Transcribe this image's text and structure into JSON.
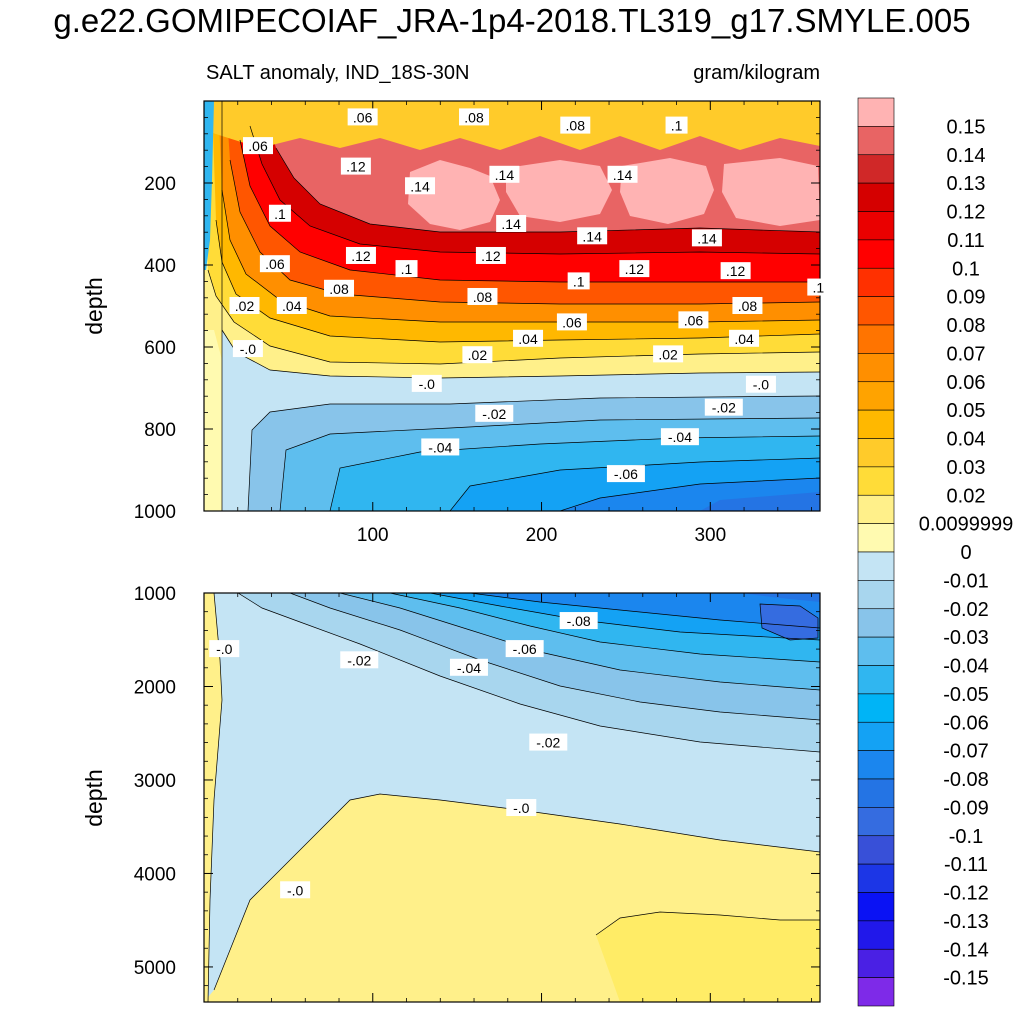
{
  "title": "g.e22.GOMIPECOIAF_JRA-1p4-2018.TL319_g17.SMYLE.005",
  "subtitle_left": "SALT anomaly, IND_18S-30N",
  "subtitle_right": "gram/kilogram",
  "chart_data": [
    {
      "type": "heatmap",
      "panel": "upper",
      "variable": "SALT anomaly",
      "region": "IND_18S-30N",
      "units": "gram/kilogram",
      "xlabel": "",
      "ylabel": "depth",
      "xlim": [
        0,
        365
      ],
      "ylim": [
        1000,
        0
      ],
      "x_ticks": [
        100,
        200,
        300
      ],
      "y_ticks": [
        200,
        400,
        600,
        800,
        1000
      ],
      "contour_labels": [
        {
          "text": ".06",
          "x": 32,
          "y": 110
        },
        {
          "text": ".06",
          "x": 94,
          "y": 40
        },
        {
          "text": ".08",
          "x": 160,
          "y": 40
        },
        {
          "text": ".08",
          "x": 220,
          "y": 60
        },
        {
          "text": ".1",
          "x": 280,
          "y": 60
        },
        {
          "text": ".12",
          "x": 90,
          "y": 160
        },
        {
          "text": ".14",
          "x": 128,
          "y": 208
        },
        {
          "text": ".14",
          "x": 178,
          "y": 180
        },
        {
          "text": ".14",
          "x": 248,
          "y": 180
        },
        {
          "text": ".1",
          "x": 45,
          "y": 275
        },
        {
          "text": ".14",
          "x": 182,
          "y": 300
        },
        {
          "text": ".14",
          "x": 230,
          "y": 330
        },
        {
          "text": ".14",
          "x": 298,
          "y": 335
        },
        {
          "text": ".12",
          "x": 93,
          "y": 378
        },
        {
          "text": ".12",
          "x": 170,
          "y": 378
        },
        {
          "text": ".1",
          "x": 120,
          "y": 410
        },
        {
          "text": ".12",
          "x": 255,
          "y": 410
        },
        {
          "text": ".12",
          "x": 315,
          "y": 415
        },
        {
          "text": ".06",
          "x": 42,
          "y": 398
        },
        {
          "text": ".1",
          "x": 222,
          "y": 440
        },
        {
          "text": ".1",
          "x": 364,
          "y": 455
        },
        {
          "text": ".08",
          "x": 80,
          "y": 458
        },
        {
          "text": ".08",
          "x": 165,
          "y": 478
        },
        {
          "text": ".02",
          "x": 24,
          "y": 500
        },
        {
          "text": ".04",
          "x": 52,
          "y": 500
        },
        {
          "text": ".08",
          "x": 322,
          "y": 500
        },
        {
          "text": ".06",
          "x": 218,
          "y": 540
        },
        {
          "text": ".06",
          "x": 290,
          "y": 535
        },
        {
          "text": ".04",
          "x": 192,
          "y": 580
        },
        {
          "text": ".04",
          "x": 320,
          "y": 580
        },
        {
          "text": "-.0",
          "x": 26,
          "y": 605
        },
        {
          "text": ".02",
          "x": 162,
          "y": 620
        },
        {
          "text": ".02",
          "x": 275,
          "y": 618
        },
        {
          "text": "-.0",
          "x": 330,
          "y": 692
        },
        {
          "text": "-.0",
          "x": 132,
          "y": 690
        },
        {
          "text": "-.02",
          "x": 172,
          "y": 763
        },
        {
          "text": "-.02",
          "x": 308,
          "y": 748
        },
        {
          "text": "-.04",
          "x": 140,
          "y": 845
        },
        {
          "text": "-.04",
          "x": 282,
          "y": 820
        },
        {
          "text": "-.06",
          "x": 250,
          "y": 910
        }
      ]
    },
    {
      "type": "heatmap",
      "panel": "lower",
      "variable": "SALT anomaly",
      "region": "IND_18S-30N",
      "units": "gram/kilogram",
      "xlabel": "",
      "ylabel": "depth",
      "xlim": [
        0,
        365
      ],
      "ylim": [
        5375,
        1000
      ],
      "x_ticks": [
        100,
        200,
        300
      ],
      "y_ticks": [
        1000,
        2000,
        3000,
        4000,
        5000
      ],
      "contour_labels": [
        {
          "text": "-.08",
          "x": 222,
          "y": 1300
        },
        {
          "text": "-.06",
          "x": 190,
          "y": 1600
        },
        {
          "text": "-.04",
          "x": 157,
          "y": 1800
        },
        {
          "text": "-.02",
          "x": 92,
          "y": 1720
        },
        {
          "text": "-.0",
          "x": 12,
          "y": 1600
        },
        {
          "text": "-.02",
          "x": 204,
          "y": 2600
        },
        {
          "text": "-.0",
          "x": 188,
          "y": 3300
        },
        {
          "text": "-.0",
          "x": 54,
          "y": 4180
        }
      ]
    }
  ],
  "colorbar": {
    "labels": [
      "0.15",
      "0.14",
      "0.13",
      "0.12",
      "0.11",
      "0.1",
      "0.09",
      "0.08",
      "0.07",
      "0.06",
      "0.05",
      "0.04",
      "0.03",
      "0.02",
      "0.0099999",
      "0",
      "-0.01",
      "-0.02",
      "-0.03",
      "-0.04",
      "-0.05",
      "-0.06",
      "-0.07",
      "-0.08",
      "-0.09",
      "-0.1",
      "-0.11",
      "-0.12",
      "-0.13",
      "-0.14",
      "-0.15"
    ],
    "colors": [
      "#ffb3b3",
      "#e86464",
      "#d02828",
      "#d50000",
      "#ea0000",
      "#ff0000",
      "#ff3000",
      "#ff5600",
      "#ff7400",
      "#ff8f00",
      "#ffa300",
      "#ffb800",
      "#ffcb2a",
      "#ffdc38",
      "#fff08a",
      "#fffab0",
      "#c4e4f4",
      "#a8d6ee",
      "#88c4ea",
      "#5ebeee",
      "#30b6f0",
      "#00b4f6",
      "#14a2f4",
      "#1b86ee",
      "#2474e4",
      "#356ce0",
      "#3850d8",
      "#1c36e6",
      "#0a12f4",
      "#2118ea",
      "#4a20e4",
      "#7e2ae8"
    ]
  }
}
